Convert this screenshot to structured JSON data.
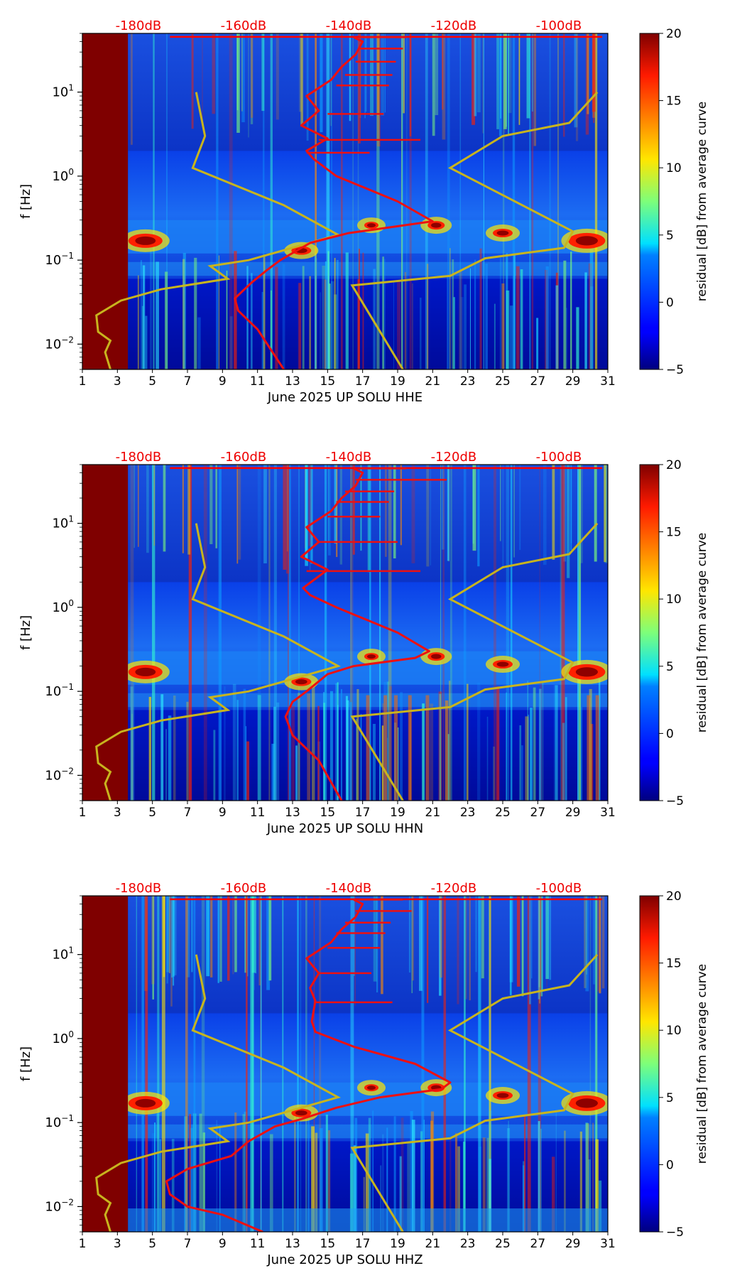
{
  "chart_data": [
    {
      "type": "heatmap",
      "panel": "HHE",
      "xlabel": "June 2025 UP SOLU  HHE",
      "ylabel": "f [Hz]",
      "x_ticks": [
        "1",
        "3",
        "5",
        "7",
        "9",
        "11",
        "13",
        "15",
        "17",
        "19",
        "21",
        "23",
        "25",
        "27",
        "29",
        "31"
      ],
      "xlim": [
        1,
        31
      ],
      "y_ticks": [
        {
          "value": 0.01,
          "base": "10",
          "exp": "−2"
        },
        {
          "value": 0.1,
          "base": "10",
          "exp": "−1"
        },
        {
          "value": 1,
          "base": "10",
          "exp": "0"
        },
        {
          "value": 10,
          "base": "10",
          "exp": "1"
        }
      ],
      "ylim": [
        0.005,
        50
      ],
      "top_ticks": [
        {
          "x": 4.2,
          "label": "-180dB"
        },
        {
          "x": 10.2,
          "label": "-160dB"
        },
        {
          "x": 16.2,
          "label": "-140dB"
        },
        {
          "x": 22.2,
          "label": "-120dB"
        },
        {
          "x": 28.2,
          "label": "-100dB"
        }
      ],
      "colorbar": {
        "label": "residual [dB] from average curve",
        "ticks": [
          "20",
          "15",
          "10",
          "5",
          "0",
          "−5"
        ],
        "range": [
          -5,
          20
        ]
      },
      "noise_model": [
        [
          2.6,
          0.005
        ],
        [
          2.3,
          0.008
        ],
        [
          2.6,
          0.011
        ],
        [
          1.9,
          0.014
        ],
        [
          1.8,
          0.022
        ],
        [
          3.2,
          0.033
        ],
        [
          5.5,
          0.045
        ],
        [
          9.3,
          0.06
        ],
        [
          8.3,
          0.085
        ],
        [
          10.5,
          0.1
        ],
        [
          15.6,
          0.2
        ],
        [
          12.5,
          0.45
        ],
        [
          7.3,
          1.25
        ],
        [
          8.0,
          3.0
        ],
        [
          7.5,
          10
        ]
      ],
      "noise_model_right": [
        [
          19.3,
          0.005
        ],
        [
          16.4,
          0.05
        ],
        [
          22.0,
          0.065
        ],
        [
          24.0,
          0.105
        ],
        [
          28.5,
          0.14
        ],
        [
          29.0,
          0.22
        ],
        [
          22.0,
          1.25
        ],
        [
          25.0,
          3.0
        ],
        [
          28.8,
          4.3
        ],
        [
          30.4,
          10
        ]
      ],
      "average_curve": [
        [
          12.5,
          0.005
        ],
        [
          11.0,
          0.015
        ],
        [
          9.9,
          0.025
        ],
        [
          9.7,
          0.035
        ],
        [
          10.7,
          0.055
        ],
        [
          11.5,
          0.075
        ],
        [
          12.3,
          0.1
        ],
        [
          14.0,
          0.16
        ],
        [
          16.2,
          0.21
        ],
        [
          21.0,
          0.29
        ],
        [
          19.0,
          0.5
        ],
        [
          15.5,
          1.0
        ],
        [
          14.2,
          1.6
        ],
        [
          13.8,
          2.0
        ],
        [
          15.0,
          2.8
        ],
        [
          13.5,
          4.0
        ],
        [
          14.5,
          6.0
        ],
        [
          13.8,
          9.0
        ],
        [
          15.2,
          14.0
        ],
        [
          15.8,
          20.0
        ],
        [
          16.6,
          28.0
        ],
        [
          17.0,
          40.0
        ],
        [
          16.5,
          45.0
        ]
      ],
      "spikes": [
        [
          13.8,
          1.9,
          17.4
        ],
        [
          14.5,
          2.7,
          20.3
        ],
        [
          15.0,
          5.5,
          18.2
        ],
        [
          15.5,
          12.0,
          18.5
        ],
        [
          16.0,
          16.0,
          18.7
        ],
        [
          16.6,
          23.0,
          18.9
        ],
        [
          16.8,
          33.0,
          19.3
        ],
        [
          16.8,
          45.0,
          19.5
        ]
      ]
    },
    {
      "type": "heatmap",
      "panel": "HHN",
      "xlabel": "June 2025 UP SOLU  HHN",
      "ylabel": "f [Hz]",
      "x_ticks": [
        "1",
        "3",
        "5",
        "7",
        "9",
        "11",
        "13",
        "15",
        "17",
        "19",
        "21",
        "23",
        "25",
        "27",
        "29",
        "31"
      ],
      "xlim": [
        1,
        31
      ],
      "y_ticks": [
        {
          "value": 0.01,
          "base": "10",
          "exp": "−2"
        },
        {
          "value": 0.1,
          "base": "10",
          "exp": "−1"
        },
        {
          "value": 1,
          "base": "10",
          "exp": "0"
        },
        {
          "value": 10,
          "base": "10",
          "exp": "1"
        }
      ],
      "ylim": [
        0.005,
        50
      ],
      "top_ticks": [
        {
          "x": 4.2,
          "label": "-180dB"
        },
        {
          "x": 10.2,
          "label": "-160dB"
        },
        {
          "x": 16.2,
          "label": "-140dB"
        },
        {
          "x": 22.2,
          "label": "-120dB"
        },
        {
          "x": 28.2,
          "label": "-100dB"
        }
      ],
      "colorbar": {
        "label": "residual [dB] from average curve",
        "ticks": [
          "20",
          "15",
          "10",
          "5",
          "0",
          "−5"
        ],
        "range": [
          -5,
          20
        ]
      },
      "noise_model": [
        [
          2.6,
          0.005
        ],
        [
          2.3,
          0.008
        ],
        [
          2.6,
          0.011
        ],
        [
          1.9,
          0.014
        ],
        [
          1.8,
          0.022
        ],
        [
          3.2,
          0.033
        ],
        [
          5.5,
          0.045
        ],
        [
          9.3,
          0.06
        ],
        [
          8.3,
          0.085
        ],
        [
          10.5,
          0.1
        ],
        [
          15.6,
          0.2
        ],
        [
          12.5,
          0.45
        ],
        [
          7.3,
          1.25
        ],
        [
          8.0,
          3.0
        ],
        [
          7.5,
          10
        ]
      ],
      "noise_model_right": [
        [
          19.3,
          0.005
        ],
        [
          16.4,
          0.05
        ],
        [
          22.0,
          0.065
        ],
        [
          24.0,
          0.105
        ],
        [
          28.5,
          0.14
        ],
        [
          29.0,
          0.22
        ],
        [
          22.0,
          1.25
        ],
        [
          25.0,
          3.0
        ],
        [
          28.8,
          4.3
        ],
        [
          30.4,
          10
        ]
      ],
      "average_curve": [
        [
          15.8,
          0.005
        ],
        [
          14.5,
          0.015
        ],
        [
          13.0,
          0.03
        ],
        [
          12.6,
          0.05
        ],
        [
          13.0,
          0.075
        ],
        [
          13.8,
          0.1
        ],
        [
          15.0,
          0.16
        ],
        [
          16.5,
          0.2
        ],
        [
          20.0,
          0.25
        ],
        [
          20.8,
          0.3
        ],
        [
          19.0,
          0.5
        ],
        [
          15.5,
          1.0
        ],
        [
          14.0,
          1.4
        ],
        [
          13.6,
          1.7
        ],
        [
          15.0,
          2.8
        ],
        [
          13.5,
          4.0
        ],
        [
          14.5,
          6.0
        ],
        [
          13.8,
          9.0
        ],
        [
          15.2,
          14.0
        ],
        [
          15.8,
          20.0
        ],
        [
          16.6,
          28.0
        ],
        [
          17.0,
          40.0
        ],
        [
          16.5,
          45.0
        ]
      ],
      "spikes": [
        [
          13.8,
          2.7,
          20.3
        ],
        [
          14.5,
          6.0,
          19.0
        ],
        [
          15.0,
          12.0,
          18.0
        ],
        [
          15.5,
          18.0,
          18.5
        ],
        [
          16.0,
          24.0,
          18.8
        ],
        [
          16.6,
          33.0,
          21.8
        ],
        [
          16.8,
          45.0,
          19.5
        ]
      ]
    },
    {
      "type": "heatmap",
      "panel": "HHZ",
      "xlabel": "June 2025 UP SOLU  HHZ",
      "ylabel": "f [Hz]",
      "x_ticks": [
        "1",
        "3",
        "5",
        "7",
        "9",
        "11",
        "13",
        "15",
        "17",
        "19",
        "21",
        "23",
        "25",
        "27",
        "29",
        "31"
      ],
      "xlim": [
        1,
        31
      ],
      "y_ticks": [
        {
          "value": 0.01,
          "base": "10",
          "exp": "−2"
        },
        {
          "value": 0.1,
          "base": "10",
          "exp": "−1"
        },
        {
          "value": 1,
          "base": "10",
          "exp": "0"
        },
        {
          "value": 10,
          "base": "10",
          "exp": "1"
        }
      ],
      "ylim": [
        0.005,
        50
      ],
      "top_ticks": [
        {
          "x": 4.2,
          "label": "-180dB"
        },
        {
          "x": 10.2,
          "label": "-160dB"
        },
        {
          "x": 16.2,
          "label": "-140dB"
        },
        {
          "x": 22.2,
          "label": "-120dB"
        },
        {
          "x": 28.2,
          "label": "-100dB"
        }
      ],
      "colorbar": {
        "label": "residual [dB] from average curve",
        "ticks": [
          "20",
          "15",
          "10",
          "5",
          "0",
          "−5"
        ],
        "range": [
          -5,
          20
        ]
      },
      "noise_model": [
        [
          2.6,
          0.005
        ],
        [
          2.3,
          0.008
        ],
        [
          2.6,
          0.011
        ],
        [
          1.9,
          0.014
        ],
        [
          1.8,
          0.022
        ],
        [
          3.2,
          0.033
        ],
        [
          5.5,
          0.045
        ],
        [
          9.3,
          0.06
        ],
        [
          8.3,
          0.085
        ],
        [
          10.5,
          0.1
        ],
        [
          15.6,
          0.2
        ],
        [
          12.5,
          0.45
        ],
        [
          7.3,
          1.25
        ],
        [
          8.0,
          3.0
        ],
        [
          7.5,
          10
        ]
      ],
      "noise_model_right": [
        [
          19.3,
          0.005
        ],
        [
          16.4,
          0.05
        ],
        [
          22.0,
          0.065
        ],
        [
          24.0,
          0.105
        ],
        [
          28.5,
          0.14
        ],
        [
          29.0,
          0.22
        ],
        [
          22.0,
          1.25
        ],
        [
          25.0,
          3.0
        ],
        [
          28.8,
          4.3
        ],
        [
          30.4,
          10
        ]
      ],
      "average_curve": [
        [
          11.3,
          0.005
        ],
        [
          9.0,
          0.008
        ],
        [
          7.0,
          0.01
        ],
        [
          6.0,
          0.014
        ],
        [
          5.8,
          0.02
        ],
        [
          7.0,
          0.028
        ],
        [
          9.5,
          0.04
        ],
        [
          10.5,
          0.06
        ],
        [
          12.0,
          0.09
        ],
        [
          13.5,
          0.11
        ],
        [
          15.5,
          0.15
        ],
        [
          18.0,
          0.2
        ],
        [
          21.5,
          0.25
        ],
        [
          22.0,
          0.3
        ],
        [
          20.0,
          0.5
        ],
        [
          16.5,
          0.8
        ],
        [
          14.3,
          1.2
        ],
        [
          14.1,
          1.6
        ],
        [
          14.3,
          2.8
        ],
        [
          14.0,
          4.0
        ],
        [
          14.5,
          6.0
        ],
        [
          13.8,
          9.0
        ],
        [
          15.2,
          14.0
        ],
        [
          15.8,
          20.0
        ],
        [
          16.6,
          28.0
        ],
        [
          17.0,
          40.0
        ],
        [
          16.5,
          45.0
        ]
      ],
      "spikes": [
        [
          14.3,
          2.7,
          18.7
        ],
        [
          14.5,
          6.0,
          17.5
        ],
        [
          15.0,
          12.0,
          18.0
        ],
        [
          15.5,
          18.0,
          18.3
        ],
        [
          16.0,
          24.0,
          18.6
        ],
        [
          16.6,
          33.0,
          19.8
        ],
        [
          16.8,
          45.0,
          19.3
        ]
      ]
    }
  ]
}
